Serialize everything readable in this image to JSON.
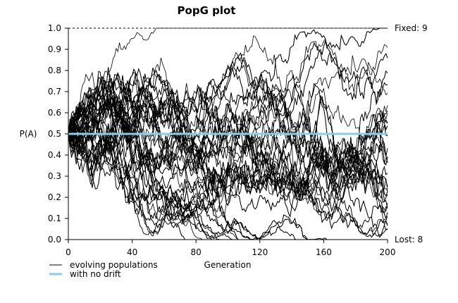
{
  "chart_data": {
    "type": "line",
    "title": "PopG plot",
    "xlabel": "Generation",
    "ylabel": "P(A)",
    "xlim": [
      0,
      200
    ],
    "ylim": [
      0,
      1
    ],
    "x_ticks": [
      "0",
      "40",
      "80",
      "120",
      "160",
      "200"
    ],
    "y_ticks": [
      "0.0",
      "0.1",
      "0.2",
      "0.3",
      "0.4",
      "0.5",
      "0.6",
      "0.7",
      "0.8",
      "0.9",
      "1.0"
    ],
    "fixed_label": "Fixed: 9",
    "lost_label": "Lost: 8",
    "legend": [
      {
        "label": "evolving populations",
        "color": "#000000"
      },
      {
        "label": "with no drift",
        "color": "#87ceeb"
      }
    ],
    "n_populations": 100,
    "initial_frequency": 0.5,
    "no_drift_value": 0.5,
    "colors": {
      "populations": "#000000",
      "no_drift": "#87ceeb"
    }
  }
}
